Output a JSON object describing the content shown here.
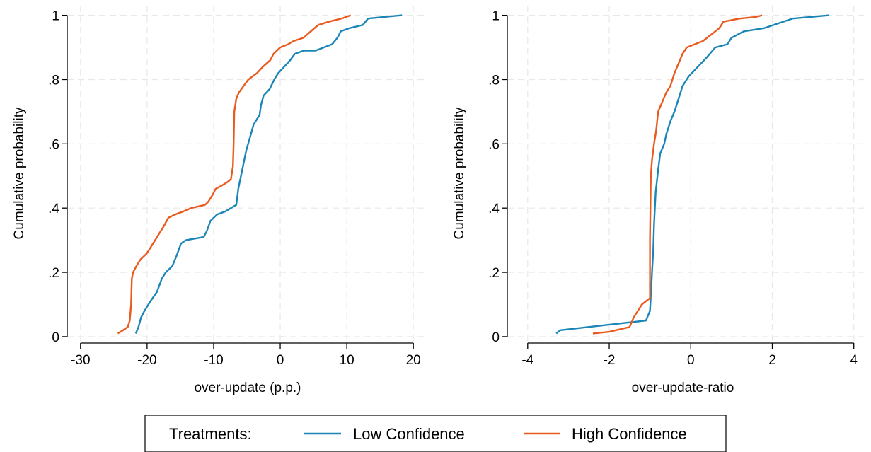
{
  "chart_data": [
    {
      "type": "line",
      "title": "",
      "xlabel": "over-update (p.p.)",
      "ylabel": "Cumulative probability",
      "xlim": [
        -32,
        22
      ],
      "ylim": [
        -0.02,
        1.03
      ],
      "xticks": [
        -30,
        -20,
        -10,
        0,
        10,
        20
      ],
      "xtick_labels": [
        "-30",
        "-20",
        "-10",
        "0",
        "10",
        "20"
      ],
      "yticks": [
        0,
        0.2,
        0.4,
        0.6,
        0.8,
        1
      ],
      "ytick_labels": [
        "0",
        ".2",
        ".4",
        ".6",
        ".8",
        "1"
      ],
      "grid": true,
      "series": [
        {
          "name": "Low Confidence",
          "color": "#1a86b7",
          "points": [
            [
              -21.7,
              0.01
            ],
            [
              -21.3,
              0.03
            ],
            [
              -20.9,
              0.06
            ],
            [
              -20.4,
              0.08
            ],
            [
              -19.5,
              0.11
            ],
            [
              -18.5,
              0.14
            ],
            [
              -17.8,
              0.18
            ],
            [
              -17.2,
              0.2
            ],
            [
              -16.2,
              0.22
            ],
            [
              -15.6,
              0.25
            ],
            [
              -14.9,
              0.29
            ],
            [
              -14.2,
              0.3
            ],
            [
              -11.5,
              0.31
            ],
            [
              -11.0,
              0.33
            ],
            [
              -10.5,
              0.36
            ],
            [
              -9.5,
              0.38
            ],
            [
              -8.2,
              0.39
            ],
            [
              -6.6,
              0.41
            ],
            [
              -6.3,
              0.46
            ],
            [
              -5.7,
              0.52
            ],
            [
              -5.1,
              0.58
            ],
            [
              -4.4,
              0.63
            ],
            [
              -4.0,
              0.66
            ],
            [
              -3.1,
              0.69
            ],
            [
              -2.9,
              0.72
            ],
            [
              -2.5,
              0.75
            ],
            [
              -1.6,
              0.77
            ],
            [
              -0.9,
              0.8
            ],
            [
              -0.3,
              0.82
            ],
            [
              0.6,
              0.84
            ],
            [
              1.5,
              0.86
            ],
            [
              2.2,
              0.88
            ],
            [
              3.5,
              0.89
            ],
            [
              5.3,
              0.89
            ],
            [
              7.8,
              0.91
            ],
            [
              8.6,
              0.93
            ],
            [
              9.1,
              0.95
            ],
            [
              10.4,
              0.96
            ],
            [
              12.4,
              0.97
            ],
            [
              13.2,
              0.99
            ],
            [
              15.6,
              0.995
            ],
            [
              18.3,
              1.0
            ]
          ]
        },
        {
          "name": "High Confidence",
          "color": "#ea5a1e",
          "points": [
            [
              -24.4,
              0.01
            ],
            [
              -23.6,
              0.02
            ],
            [
              -22.9,
              0.03
            ],
            [
              -22.6,
              0.05
            ],
            [
              -22.4,
              0.1
            ],
            [
              -22.3,
              0.18
            ],
            [
              -22.1,
              0.2
            ],
            [
              -21.6,
              0.22
            ],
            [
              -21.0,
              0.24
            ],
            [
              -20.0,
              0.26
            ],
            [
              -19.4,
              0.28
            ],
            [
              -18.8,
              0.3
            ],
            [
              -18.2,
              0.32
            ],
            [
              -17.6,
              0.34
            ],
            [
              -16.8,
              0.37
            ],
            [
              -15.8,
              0.38
            ],
            [
              -14.5,
              0.39
            ],
            [
              -13.4,
              0.4
            ],
            [
              -11.3,
              0.41
            ],
            [
              -10.8,
              0.42
            ],
            [
              -10.2,
              0.44
            ],
            [
              -9.7,
              0.46
            ],
            [
              -8.8,
              0.47
            ],
            [
              -8.0,
              0.48
            ],
            [
              -7.4,
              0.49
            ],
            [
              -7.1,
              0.53
            ],
            [
              -7.0,
              0.6
            ],
            [
              -6.9,
              0.7
            ],
            [
              -6.6,
              0.74
            ],
            [
              -6.2,
              0.76
            ],
            [
              -5.5,
              0.78
            ],
            [
              -4.8,
              0.8
            ],
            [
              -3.5,
              0.82
            ],
            [
              -2.6,
              0.84
            ],
            [
              -1.5,
              0.86
            ],
            [
              -1.0,
              0.88
            ],
            [
              0.0,
              0.9
            ],
            [
              1.2,
              0.91
            ],
            [
              2.0,
              0.92
            ],
            [
              3.5,
              0.93
            ],
            [
              4.6,
              0.95
            ],
            [
              5.7,
              0.97
            ],
            [
              7.3,
              0.98
            ],
            [
              9.2,
              0.99
            ],
            [
              10.6,
              1.0
            ]
          ]
        }
      ]
    },
    {
      "type": "line",
      "title": "",
      "xlabel": "over-update-ratio",
      "ylabel": "Cumulative probability",
      "xlim": [
        -4.5,
        4.3
      ],
      "ylim": [
        -0.02,
        1.03
      ],
      "xticks": [
        -4,
        -2,
        0,
        2,
        4
      ],
      "xtick_labels": [
        "-4",
        "-2",
        "0",
        "2",
        "4"
      ],
      "yticks": [
        0,
        0.2,
        0.4,
        0.6,
        0.8,
        1
      ],
      "ytick_labels": [
        "0",
        ".2",
        ".4",
        ".6",
        ".8",
        "1"
      ],
      "grid": true,
      "series": [
        {
          "name": "Low Confidence",
          "color": "#1a86b7",
          "points": [
            [
              -3.3,
              0.01
            ],
            [
              -3.2,
              0.02
            ],
            [
              -2.7,
              0.027
            ],
            [
              -1.8,
              0.04
            ],
            [
              -1.1,
              0.05
            ],
            [
              -1.0,
              0.08
            ],
            [
              -0.97,
              0.15
            ],
            [
              -0.95,
              0.2
            ],
            [
              -0.92,
              0.27
            ],
            [
              -0.9,
              0.35
            ],
            [
              -0.86,
              0.45
            ],
            [
              -0.8,
              0.52
            ],
            [
              -0.75,
              0.57
            ],
            [
              -0.65,
              0.6
            ],
            [
              -0.6,
              0.63
            ],
            [
              -0.5,
              0.67
            ],
            [
              -0.4,
              0.7
            ],
            [
              -0.3,
              0.74
            ],
            [
              -0.2,
              0.78
            ],
            [
              -0.05,
              0.81
            ],
            [
              0.1,
              0.83
            ],
            [
              0.25,
              0.85
            ],
            [
              0.4,
              0.87
            ],
            [
              0.6,
              0.9
            ],
            [
              0.9,
              0.91
            ],
            [
              1.0,
              0.93
            ],
            [
              1.3,
              0.95
            ],
            [
              1.8,
              0.96
            ],
            [
              2.5,
              0.99
            ],
            [
              3.4,
              1.0
            ]
          ]
        },
        {
          "name": "High Confidence",
          "color": "#ea5a1e",
          "points": [
            [
              -2.4,
              0.01
            ],
            [
              -2.0,
              0.015
            ],
            [
              -1.5,
              0.03
            ],
            [
              -1.4,
              0.06
            ],
            [
              -1.3,
              0.08
            ],
            [
              -1.2,
              0.1
            ],
            [
              -1.1,
              0.11
            ],
            [
              -1.0,
              0.12
            ],
            [
              -1.0,
              0.3
            ],
            [
              -0.98,
              0.5
            ],
            [
              -0.95,
              0.55
            ],
            [
              -0.9,
              0.6
            ],
            [
              -0.85,
              0.64
            ],
            [
              -0.8,
              0.7
            ],
            [
              -0.7,
              0.73
            ],
            [
              -0.6,
              0.76
            ],
            [
              -0.5,
              0.78
            ],
            [
              -0.4,
              0.82
            ],
            [
              -0.3,
              0.85
            ],
            [
              -0.2,
              0.88
            ],
            [
              -0.1,
              0.9
            ],
            [
              0.1,
              0.91
            ],
            [
              0.3,
              0.92
            ],
            [
              0.5,
              0.94
            ],
            [
              0.7,
              0.96
            ],
            [
              0.8,
              0.98
            ],
            [
              1.2,
              0.99
            ],
            [
              1.6,
              0.995
            ],
            [
              1.75,
              1.0
            ]
          ]
        }
      ]
    }
  ],
  "legend": {
    "title": "Treatments:",
    "items": [
      {
        "label": "Low Confidence",
        "color": "#1a86b7"
      },
      {
        "label": "High Confidence",
        "color": "#ea5a1e"
      }
    ]
  }
}
